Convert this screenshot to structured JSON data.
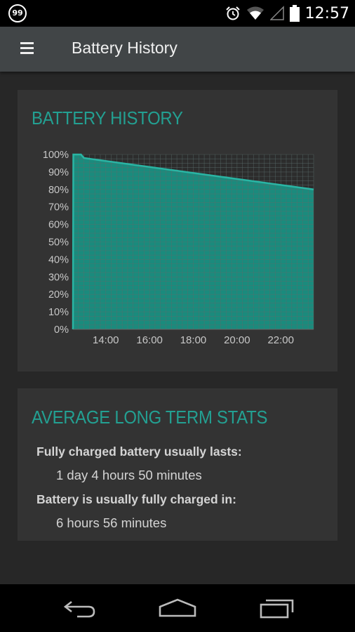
{
  "status_bar": {
    "notification_badge": "99",
    "time": "12:57",
    "icons": [
      "alarm-icon",
      "wifi-icon",
      "signal-icon",
      "battery-icon"
    ]
  },
  "action_bar": {
    "title": "Battery History",
    "menu_icon": "hamburger-menu-icon"
  },
  "history_card": {
    "title": "BATTERY HISTORY"
  },
  "chart_data": {
    "type": "area",
    "ylim": [
      0,
      100
    ],
    "y_ticks": [
      "0%",
      "10%",
      "20%",
      "30%",
      "40%",
      "50%",
      "60%",
      "70%",
      "80%",
      "90%",
      "100%"
    ],
    "x_ticks": [
      "14:00",
      "16:00",
      "18:00",
      "20:00",
      "22:00"
    ],
    "xlim": [
      "12:30",
      "23:30"
    ],
    "series": [
      {
        "x": [
          "12:30",
          "12:31",
          "12:52",
          "13:00",
          "23:30"
        ],
        "y": [
          0,
          100,
          100,
          98,
          80
        ]
      }
    ],
    "grid": true,
    "colors": {
      "fill": "#1a8b7d",
      "line": "#2ab5a4",
      "grid": "#5a6d6b"
    }
  },
  "stats_card": {
    "title": "AVERAGE LONG TERM STATS",
    "lasts_label": "Fully charged battery usually lasts:",
    "lasts_value": "1 day 4 hours 50 minutes",
    "charged_label": "Battery is usually fully charged in:",
    "charged_value": "6 hours 56 minutes"
  },
  "nav_bar": {
    "buttons": [
      "back-icon",
      "home-icon",
      "recent-apps-icon"
    ]
  },
  "colors": {
    "accent": "#23a092",
    "card_bg": "#333333",
    "page_bg": "#272727",
    "action_bar": "#414547"
  }
}
